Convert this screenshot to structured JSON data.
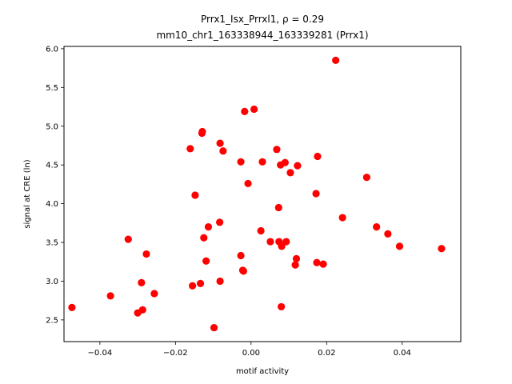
{
  "chart_data": {
    "type": "scatter",
    "title_line1": "Prrx1_Isx_Prrxl1, ρ = 0.29",
    "title_line2": "mm10_chr1_163338944_163339281 (Prrx1)",
    "xlabel": "motif activity",
    "ylabel": "signal at CRE (ln)",
    "xlim": [
      -0.0495,
      0.0555
    ],
    "ylim": [
      2.22,
      6.03
    ],
    "xticks": [
      -0.04,
      -0.02,
      0.0,
      0.02,
      0.04
    ],
    "xtick_labels": [
      "−0.04",
      "−0.02",
      "0.00",
      "0.02",
      "0.04"
    ],
    "yticks": [
      2.5,
      3.0,
      3.5,
      4.0,
      4.5,
      5.0,
      5.5,
      6.0
    ],
    "ytick_labels": [
      "2.5",
      "3.0",
      "3.5",
      "4.0",
      "4.5",
      "5.0",
      "5.5",
      "6.0"
    ],
    "grid": false,
    "point_color": "#ff0000",
    "points": [
      {
        "x": -0.0474,
        "y": 2.66
      },
      {
        "x": -0.0372,
        "y": 2.81
      },
      {
        "x": -0.0325,
        "y": 3.54
      },
      {
        "x": -0.03,
        "y": 2.59
      },
      {
        "x": -0.029,
        "y": 2.98
      },
      {
        "x": -0.0287,
        "y": 2.63
      },
      {
        "x": -0.0277,
        "y": 3.35
      },
      {
        "x": -0.0256,
        "y": 2.84
      },
      {
        "x": -0.0161,
        "y": 4.71
      },
      {
        "x": -0.0155,
        "y": 2.94
      },
      {
        "x": -0.0148,
        "y": 4.11
      },
      {
        "x": -0.0134,
        "y": 2.97
      },
      {
        "x": -0.013,
        "y": 4.91
      },
      {
        "x": -0.0129,
        "y": 4.93
      },
      {
        "x": -0.0125,
        "y": 3.56
      },
      {
        "x": -0.0119,
        "y": 3.26
      },
      {
        "x": -0.0113,
        "y": 3.7
      },
      {
        "x": -0.0098,
        "y": 2.4
      },
      {
        "x": -0.0083,
        "y": 3.76
      },
      {
        "x": -0.0082,
        "y": 4.78
      },
      {
        "x": -0.0082,
        "y": 3.0
      },
      {
        "x": -0.0074,
        "y": 4.68
      },
      {
        "x": -0.0027,
        "y": 3.33
      },
      {
        "x": -0.0027,
        "y": 4.54
      },
      {
        "x": -0.0022,
        "y": 3.14
      },
      {
        "x": -0.002,
        "y": 3.13
      },
      {
        "x": -0.0017,
        "y": 5.19
      },
      {
        "x": -0.0008,
        "y": 4.26
      },
      {
        "x": 0.0008,
        "y": 5.22
      },
      {
        "x": 0.0026,
        "y": 3.65
      },
      {
        "x": 0.003,
        "y": 4.54
      },
      {
        "x": 0.0051,
        "y": 3.51
      },
      {
        "x": 0.0068,
        "y": 4.7
      },
      {
        "x": 0.0073,
        "y": 3.95
      },
      {
        "x": 0.0074,
        "y": 3.51
      },
      {
        "x": 0.0078,
        "y": 4.5
      },
      {
        "x": 0.008,
        "y": 2.67
      },
      {
        "x": 0.0081,
        "y": 3.45
      },
      {
        "x": 0.009,
        "y": 4.53
      },
      {
        "x": 0.0093,
        "y": 3.51
      },
      {
        "x": 0.0104,
        "y": 4.4
      },
      {
        "x": 0.0117,
        "y": 3.21
      },
      {
        "x": 0.012,
        "y": 3.29
      },
      {
        "x": 0.0123,
        "y": 4.49
      },
      {
        "x": 0.0172,
        "y": 4.13
      },
      {
        "x": 0.0174,
        "y": 3.24
      },
      {
        "x": 0.0176,
        "y": 4.61
      },
      {
        "x": 0.0191,
        "y": 3.22
      },
      {
        "x": 0.0224,
        "y": 5.85
      },
      {
        "x": 0.0242,
        "y": 3.82
      },
      {
        "x": 0.0306,
        "y": 4.34
      },
      {
        "x": 0.0332,
        "y": 3.7
      },
      {
        "x": 0.0362,
        "y": 3.61
      },
      {
        "x": 0.0393,
        "y": 3.45
      },
      {
        "x": 0.0504,
        "y": 3.42
      }
    ]
  }
}
